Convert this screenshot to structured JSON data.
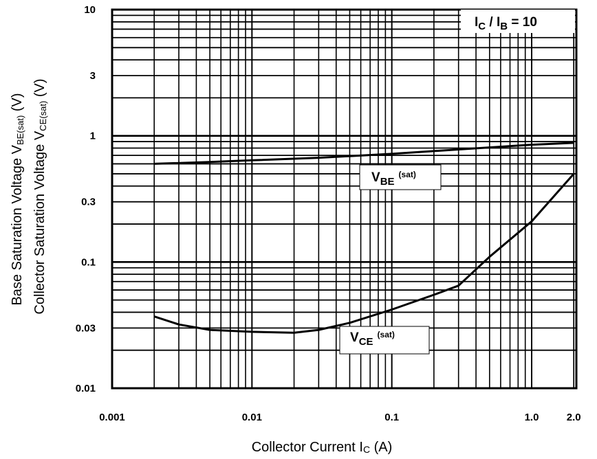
{
  "chart_data": {
    "type": "line",
    "x_scale": "log",
    "y_scale": "log",
    "xlim": [
      0.001,
      2.0
    ],
    "ylim": [
      0.01,
      10
    ],
    "xtick_labels": [
      "0.001",
      "0.01",
      "0.1",
      "1.0",
      "2.0"
    ],
    "ytick_labels": [
      "0.01",
      "0.03",
      "0.1",
      "0.3",
      "1",
      "3",
      "10"
    ],
    "xlabel": {
      "main": "Collector Current  I",
      "sub": "C",
      "unit": "  (A)"
    },
    "ylabel_1": {
      "main": "Base Saturation Voltage  V",
      "sub": "BE(sat)",
      "unit": "  (V)"
    },
    "ylabel_2": {
      "main": "Collector Saturation Voltage  V",
      "sub": "CE(sat)",
      "unit": "  (V)"
    },
    "grid": true,
    "series": [
      {
        "name": "V_BE(sat)",
        "label": {
          "main": "V",
          "sub": "BE",
          "sup": "(sat)"
        },
        "x": [
          0.002,
          0.005,
          0.01,
          0.03,
          0.1,
          0.3,
          1.0,
          2.0
        ],
        "y": [
          0.6,
          0.62,
          0.64,
          0.67,
          0.72,
          0.78,
          0.85,
          0.88
        ]
      },
      {
        "name": "V_CE(sat)",
        "label": {
          "main": "V",
          "sub": "CE",
          "sup": "(sat)"
        },
        "x": [
          0.002,
          0.003,
          0.005,
          0.01,
          0.02,
          0.03,
          0.05,
          0.1,
          0.2,
          0.3,
          0.5,
          1.0,
          2.0
        ],
        "y": [
          0.037,
          0.032,
          0.029,
          0.028,
          0.0275,
          0.029,
          0.033,
          0.042,
          0.055,
          0.065,
          0.11,
          0.21,
          0.5
        ]
      }
    ],
    "condition": {
      "main": "I",
      "sub1": "C",
      "mid": " / I",
      "sub2": "B",
      "end": " =  10"
    }
  }
}
